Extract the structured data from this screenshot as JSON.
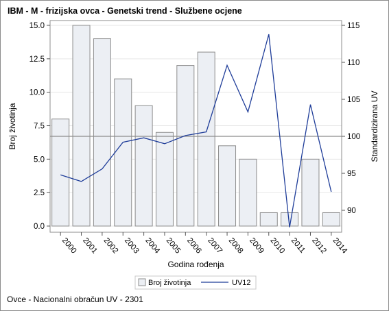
{
  "title": "IBM - M - frizijska ovca - Genetski trend - Službene ocjene",
  "footnote": "Ovce - Nacionalni obračun UV - 2301",
  "chart_data": {
    "type": "bar",
    "combo": "bar + line (dual axis)",
    "categories": [
      "2000",
      "2001",
      "2002",
      "2003",
      "2004",
      "2005",
      "2006",
      "2007",
      "2008",
      "2009",
      "2010",
      "2011",
      "2012",
      "2014"
    ],
    "xlabel": "Godina rođenja",
    "ylabel": "Broj životinja",
    "y2label": "Standardizirana UV",
    "ylim": [
      0,
      15
    ],
    "y2lim": [
      88,
      115
    ],
    "yticks": [
      "0.0",
      "2.5",
      "5.0",
      "7.5",
      "10.0",
      "12.5",
      "15.0"
    ],
    "y2ticks": [
      "90",
      "95",
      "100",
      "105",
      "110",
      "115"
    ],
    "reference_line_y2": 100,
    "grid": true,
    "legend_position": "bottom-center",
    "series": [
      {
        "name": "Broj životinja",
        "kind": "bar",
        "axis": "left",
        "color": "#eceff4",
        "stroke": "#8c8c8c",
        "values": [
          8,
          15,
          14,
          11,
          9,
          7,
          12,
          13,
          6,
          5,
          1,
          1,
          5,
          1
        ]
      },
      {
        "name": "UV12",
        "kind": "line",
        "axis": "right",
        "color": "#1f3d99",
        "values": [
          94.8,
          93.9,
          95.6,
          99.2,
          99.8,
          99.0,
          100.1,
          100.6,
          109.6,
          103.3,
          113.8,
          87.7,
          104.3,
          92.5
        ]
      }
    ]
  }
}
